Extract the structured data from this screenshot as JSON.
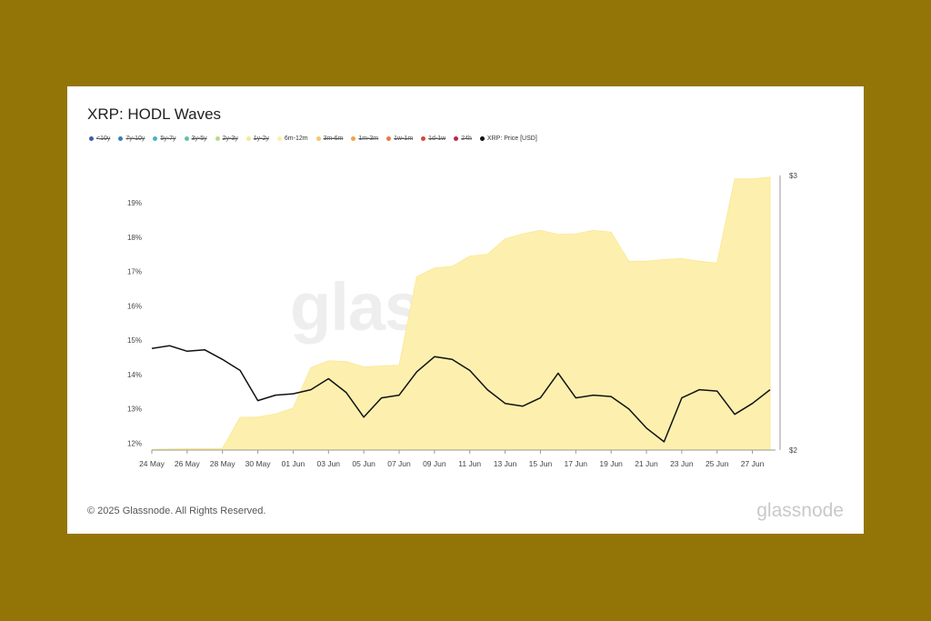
{
  "title": "XRP: HODL Waves",
  "footer": "© 2025 Glassnode. All Rights Reserved.",
  "brand": "glassnode",
  "watermark": "glassnode",
  "legend": [
    {
      "label": "<10y",
      "color": "#3c5da8",
      "active": false
    },
    {
      "label": "7y-10y",
      "color": "#3a7fb5",
      "active": false
    },
    {
      "label": "5y-7y",
      "color": "#4ab3c8",
      "active": false
    },
    {
      "label": "3y-5y",
      "color": "#5cc79a",
      "active": false
    },
    {
      "label": "2y-3y",
      "color": "#b9da8a",
      "active": false
    },
    {
      "label": "1y-2y",
      "color": "#f2ea9a",
      "active": false
    },
    {
      "label": "6m-12m",
      "color": "#fdeea6",
      "active": true
    },
    {
      "label": "3m-6m",
      "color": "#f8c56b",
      "active": false
    },
    {
      "label": "1m-3m",
      "color": "#f4a14b",
      "active": false
    },
    {
      "label": "1w-1m",
      "color": "#ec7a3d",
      "active": false
    },
    {
      "label": "1d-1w",
      "color": "#d9473b",
      "active": false
    },
    {
      "label": "24h",
      "color": "#c0244a",
      "active": false
    },
    {
      "label": "XRP: Price [USD]",
      "color": "#111111",
      "active": true
    }
  ],
  "chart_data": {
    "type": "area",
    "dates": [
      "24 May",
      "25 May",
      "26 May",
      "27 May",
      "28 May",
      "29 May",
      "30 May",
      "31 May",
      "01 Jun",
      "02 Jun",
      "03 Jun",
      "04 Jun",
      "05 Jun",
      "06 Jun",
      "07 Jun",
      "08 Jun",
      "09 Jun",
      "10 Jun",
      "11 Jun",
      "12 Jun",
      "13 Jun",
      "14 Jun",
      "15 Jun",
      "16 Jun",
      "17 Jun",
      "18 Jun",
      "19 Jun",
      "20 Jun",
      "21 Jun",
      "22 Jun",
      "23 Jun",
      "24 Jun",
      "25 Jun",
      "26 Jun",
      "27 Jun",
      "28 Jun"
    ],
    "x_tick_labels": [
      "24 May",
      "26 May",
      "28 May",
      "30 May",
      "01 Jun",
      "03 Jun",
      "05 Jun",
      "07 Jun",
      "09 Jun",
      "11 Jun",
      "13 Jun",
      "15 Jun",
      "17 Jun",
      "19 Jun",
      "21 Jun",
      "23 Jun",
      "25 Jun",
      "27 Jun"
    ],
    "series": [
      {
        "name": "6m-12m",
        "axis": "left",
        "values": [
          11.82,
          11.83,
          11.84,
          11.84,
          11.85,
          12.75,
          12.76,
          12.85,
          13.02,
          14.2,
          14.4,
          14.38,
          14.22,
          14.25,
          14.27,
          16.85,
          17.1,
          17.15,
          17.45,
          17.5,
          17.95,
          18.1,
          18.2,
          18.08,
          18.1,
          18.2,
          18.15,
          17.3,
          17.3,
          17.35,
          17.38,
          17.3,
          17.25,
          19.7,
          19.7,
          19.75
        ]
      },
      {
        "name": "XRP: Price [USD]",
        "axis": "right",
        "values": [
          2.37,
          2.38,
          2.36,
          2.365,
          2.33,
          2.29,
          2.18,
          2.2,
          2.205,
          2.22,
          2.26,
          2.21,
          2.12,
          2.19,
          2.2,
          2.285,
          2.34,
          2.33,
          2.29,
          2.22,
          2.17,
          2.16,
          2.19,
          2.28,
          2.19,
          2.2,
          2.195,
          2.15,
          2.08,
          2.03,
          2.19,
          2.22,
          2.215,
          2.13,
          2.17,
          2.22
        ]
      }
    ],
    "y_left": {
      "ticks": [
        "12%",
        "13%",
        "14%",
        "15%",
        "16%",
        "17%",
        "18%",
        "19%"
      ],
      "range": [
        11.8,
        19.8
      ]
    },
    "y_right": {
      "ticks": [
        "$2",
        "$3"
      ],
      "range": [
        2,
        3
      ]
    },
    "grid": false,
    "legend_position": "top-left"
  },
  "colors": {
    "area_fill": "#fdf0ae",
    "area_stroke": "#fbe99a",
    "price_line": "#111111",
    "axis_text": "#444444"
  }
}
